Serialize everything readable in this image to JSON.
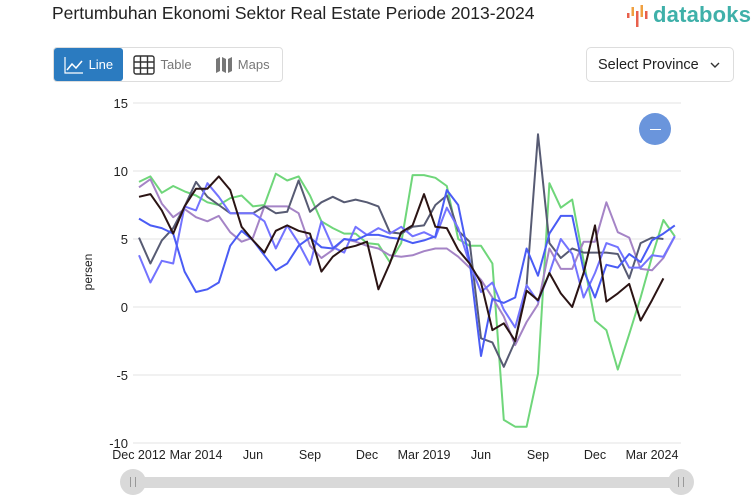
{
  "header": {
    "title": "Pertumbuhan Ekonomi Sektor Real Estate Periode 2013-2024",
    "logo_text": "databoks"
  },
  "view_buttons": [
    {
      "label": "Line",
      "icon": "line-chart-icon",
      "active": true
    },
    {
      "label": "Table",
      "icon": "table-grid-icon",
      "active": false
    },
    {
      "label": "Maps",
      "icon": "map-icon",
      "active": false
    }
  ],
  "province_select": {
    "label": "Select Province",
    "icon": "chevron-down-icon"
  },
  "zoom_button": {
    "icon": "minus-icon",
    "color": "#6a95dc"
  },
  "chart_data": {
    "type": "line",
    "title": "Pertumbuhan Ekonomi Sektor Real Estate Periode 2013-2024",
    "xlabel": "",
    "ylabel": "persen",
    "ylim": [
      -10,
      15
    ],
    "yticks": [
      "15",
      "10",
      "5",
      "0",
      "-5",
      "-10"
    ],
    "ytick_values": [
      15,
      10,
      5,
      0,
      -5,
      -10
    ],
    "xtick_labels": [
      "Dec 2012",
      "Mar 2014",
      "Jun",
      "Sep",
      "Dec",
      "Mar 2019",
      "Jun",
      "Sep",
      "Dec",
      "Mar 2024"
    ],
    "xtick_index": [
      0,
      5,
      10,
      15,
      20,
      25,
      30,
      35,
      40,
      45
    ],
    "grid": true,
    "legend": "none",
    "x": [
      "Dec 2012",
      "Mar 2013",
      "Jun 2013",
      "Sep 2013",
      "Dec 2013",
      "Mar 2014",
      "Jun 2014",
      "Sep 2014",
      "Dec 2014",
      "Mar 2015",
      "Jun 2015",
      "Sep 2015",
      "Dec 2015",
      "Mar 2016",
      "Jun 2016",
      "Sep 2016",
      "Dec 2016",
      "Mar 2017",
      "Jun 2017",
      "Sep 2017",
      "Dec 2017",
      "Mar 2018",
      "Jun 2018",
      "Sep 2018",
      "Dec 2018",
      "Mar 2019",
      "Jun 2019",
      "Sep 2019",
      "Dec 2019",
      "Mar 2020",
      "Jun 2020",
      "Sep 2020",
      "Dec 2020",
      "Mar 2021",
      "Jun 2021",
      "Sep 2021",
      "Dec 2021",
      "Mar 2022",
      "Jun 2022",
      "Sep 2022",
      "Dec 2022",
      "Mar 2023",
      "Jun 2023",
      "Sep 2023",
      "Dec 2023",
      "Mar 2024",
      "Jun 2024",
      "Sep 2024"
    ],
    "series": [
      {
        "color": "#6fd67a",
        "values": [
          9.2,
          9.6,
          8.4,
          8.9,
          8.5,
          8.2,
          7.7,
          7.5,
          8.0,
          8.2,
          7.4,
          7.5,
          9.8,
          9.3,
          9.6,
          8.2,
          6.3,
          5.8,
          5.4,
          5.4,
          4.7,
          4.6,
          3.3,
          4.7,
          9.7,
          9.7,
          9.5,
          8.9,
          5.0,
          4.5,
          4.5,
          3.2,
          -8.3,
          -8.8,
          -8.8,
          -4.9,
          9.1,
          7.3,
          7.9,
          3.4,
          -1.0,
          -1.7,
          -4.6,
          -2.0,
          0.7,
          3.7,
          6.4,
          5.2
        ]
      },
      {
        "color": "#a584c6",
        "values": [
          8.8,
          9.4,
          7.6,
          6.6,
          7.2,
          6.6,
          6.3,
          6.7,
          5.5,
          4.8,
          5.1,
          7.4,
          7.4,
          7.4,
          6.9,
          4.5,
          3.6,
          4.2,
          5.0,
          4.8,
          4.5,
          4.3,
          3.8,
          3.7,
          3.8,
          4.1,
          4.3,
          4.3,
          3.7,
          2.9,
          2.0,
          0.7,
          -0.7,
          -2.8,
          -1.1,
          0.2,
          4.3,
          2.8,
          2.8,
          4.8,
          4.8,
          7.7,
          5.5,
          5.1,
          2.8,
          2.7,
          3.6,
          5.2
        ]
      },
      {
        "color": "#575b73",
        "values": [
          5.1,
          3.2,
          4.9,
          5.8,
          7.4,
          9.2,
          8.1,
          7.5,
          6.9,
          6.9,
          6.9,
          7.4,
          6.9,
          7.0,
          9.3,
          7.0,
          7.7,
          8.1,
          7.7,
          7.9,
          7.7,
          7.4,
          5.5,
          5.4,
          5.9,
          6.0,
          7.5,
          8.2,
          5.6,
          4.8,
          -2.3,
          -2.6,
          -4.4,
          -2.5,
          1.6,
          12.7,
          4.7,
          3.6,
          4.3,
          4.0,
          4.0,
          4.0,
          3.9,
          2.1,
          4.7,
          5.1,
          5.0,
          null
        ]
      },
      {
        "color": "#7373ff",
        "values": [
          3.8,
          1.8,
          3.4,
          3.2,
          7.4,
          7.1,
          9.1,
          8.1,
          6.9,
          6.9,
          6.9,
          6.3,
          4.3,
          6.0,
          4.7,
          3.1,
          6.3,
          4.4,
          4.0,
          5.9,
          5.3,
          5.8,
          5.4,
          5.9,
          5.2,
          5.5,
          5.1,
          7.3,
          5.8,
          3.2,
          1.1,
          1.8,
          -0.2,
          -1.5,
          1.6,
          0.4,
          2.5,
          5.0,
          3.9,
          0.7,
          2.5,
          4.7,
          4.4,
          2.9,
          2.9,
          3.8,
          3.7,
          5.2
        ]
      },
      {
        "color": "#4a5cf5",
        "values": [
          6.5,
          6.0,
          5.8,
          5.4,
          2.6,
          1.1,
          1.3,
          1.8,
          4.5,
          5.6,
          4.9,
          3.8,
          2.7,
          3.2,
          4.5,
          5.1,
          4.4,
          4.3,
          5.0,
          4.9,
          5.3,
          5.3,
          5.1,
          5.0,
          4.7,
          4.9,
          5.2,
          8.6,
          7.5,
          3.4,
          -3.6,
          0.6,
          0.3,
          0.7,
          4.3,
          2.3,
          5.4,
          6.7,
          6.7,
          2.7,
          0.7,
          3.1,
          2.9,
          3.9,
          3.3,
          4.9,
          5.4,
          6.0
        ]
      },
      {
        "color": "#2b1414",
        "values": [
          8.1,
          8.3,
          7.1,
          5.4,
          7.4,
          8.7,
          8.7,
          9.6,
          8.6,
          5.9,
          4.9,
          4.0,
          5.6,
          6.0,
          5.6,
          5.4,
          2.6,
          3.7,
          4.3,
          4.5,
          4.8,
          1.3,
          3.2,
          5.5,
          6.0,
          8.3,
          5.9,
          5.8,
          4.2,
          3.2,
          1.8,
          -1.7,
          -1.2,
          -2.5,
          1.2,
          0.5,
          2.5,
          1.0,
          0.0,
          2.5,
          6.0,
          0.4,
          1.0,
          1.7,
          -1.0,
          0.5,
          2.1,
          null
        ]
      }
    ]
  }
}
